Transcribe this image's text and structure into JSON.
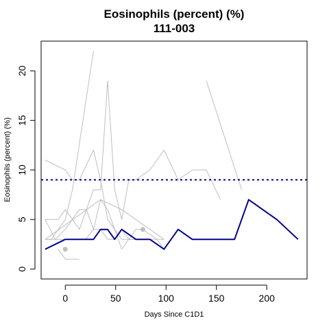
{
  "chart_data": {
    "type": "line",
    "title": "Eosinophils (percent) (%)",
    "subtitle": "111-003",
    "xlabel": "Days Since C1D1",
    "ylabel": "Eosinophils (percent) (%)",
    "xlim": [
      -24,
      240
    ],
    "ylim": [
      -1,
      23
    ],
    "x_ticks": [
      0,
      50,
      100,
      150,
      200
    ],
    "y_ticks": [
      0,
      5,
      10,
      15,
      20
    ],
    "grid": false,
    "reference_line": {
      "y": 9,
      "color": "#00008B",
      "style": "dotted"
    },
    "highlight_series": {
      "color": "#00008B",
      "points": [
        [
          -20,
          2
        ],
        [
          0,
          3
        ],
        [
          28,
          3
        ],
        [
          35,
          4
        ],
        [
          42,
          4
        ],
        [
          49,
          3
        ],
        [
          56,
          4
        ],
        [
          70,
          3
        ],
        [
          84,
          3
        ],
        [
          98,
          2
        ],
        [
          112,
          4
        ],
        [
          126,
          3
        ],
        [
          140,
          3
        ],
        [
          168,
          3
        ],
        [
          182,
          7
        ],
        [
          196,
          6
        ],
        [
          210,
          5
        ],
        [
          231,
          3
        ]
      ]
    },
    "background_series": {
      "color": "#BEBEBE",
      "lines": [
        [
          [
            -20,
            11
          ],
          [
            0,
            10
          ],
          [
            7,
            9
          ],
          [
            14,
            9
          ],
          [
            28,
            12
          ],
          [
            35,
            9
          ],
          [
            42,
            5
          ],
          [
            56,
            3
          ],
          [
            70,
            3
          ],
          [
            84,
            3
          ],
          [
            91,
            3
          ],
          [
            98,
            2
          ]
        ],
        [
          [
            -20,
            3
          ],
          [
            -14,
            3
          ],
          [
            0,
            5
          ],
          [
            7,
            8
          ],
          [
            28,
            22
          ]
        ],
        [
          [
            -7,
            2
          ],
          [
            0,
            1
          ],
          [
            14,
            1
          ]
        ],
        [
          [
            -20,
            5
          ],
          [
            -10,
            3
          ],
          [
            0,
            4
          ],
          [
            14,
            6
          ],
          [
            21,
            6
          ],
          [
            28,
            4
          ],
          [
            35,
            7
          ],
          [
            42,
            6
          ],
          [
            56,
            2
          ],
          [
            63,
            3
          ],
          [
            70,
            4
          ],
          [
            77,
            4
          ],
          [
            91,
            3
          ],
          [
            98,
            3
          ]
        ],
        [
          [
            -20,
            3
          ],
          [
            0,
            3
          ],
          [
            10,
            3
          ],
          [
            20,
            3
          ],
          [
            28,
            4
          ],
          [
            35,
            4
          ],
          [
            42,
            3
          ],
          [
            49,
            3
          ],
          [
            56,
            4
          ],
          [
            63,
            3
          ],
          [
            70,
            3
          ]
        ],
        [
          [
            -20,
            5
          ],
          [
            -7,
            5
          ],
          [
            0,
            6
          ],
          [
            14,
            4
          ],
          [
            21,
            6
          ],
          [
            28,
            8
          ],
          [
            35,
            8
          ],
          [
            42,
            19
          ],
          [
            49,
            8
          ],
          [
            56,
            5
          ],
          [
            63,
            9
          ],
          [
            70,
            9
          ],
          [
            84,
            10
          ],
          [
            98,
            12
          ],
          [
            112,
            9
          ],
          [
            126,
            10
          ],
          [
            140,
            10
          ],
          [
            154,
            7
          ]
        ],
        [
          [
            -20,
            3
          ],
          [
            35,
            7
          ],
          [
            56,
            6
          ],
          [
            70,
            5
          ],
          [
            84,
            4
          ],
          [
            98,
            3
          ]
        ],
        [
          [
            140,
            19
          ],
          [
            175,
            8
          ]
        ]
      ],
      "points": [
        [
          0,
          2
        ],
        [
          77,
          4
        ]
      ]
    }
  }
}
